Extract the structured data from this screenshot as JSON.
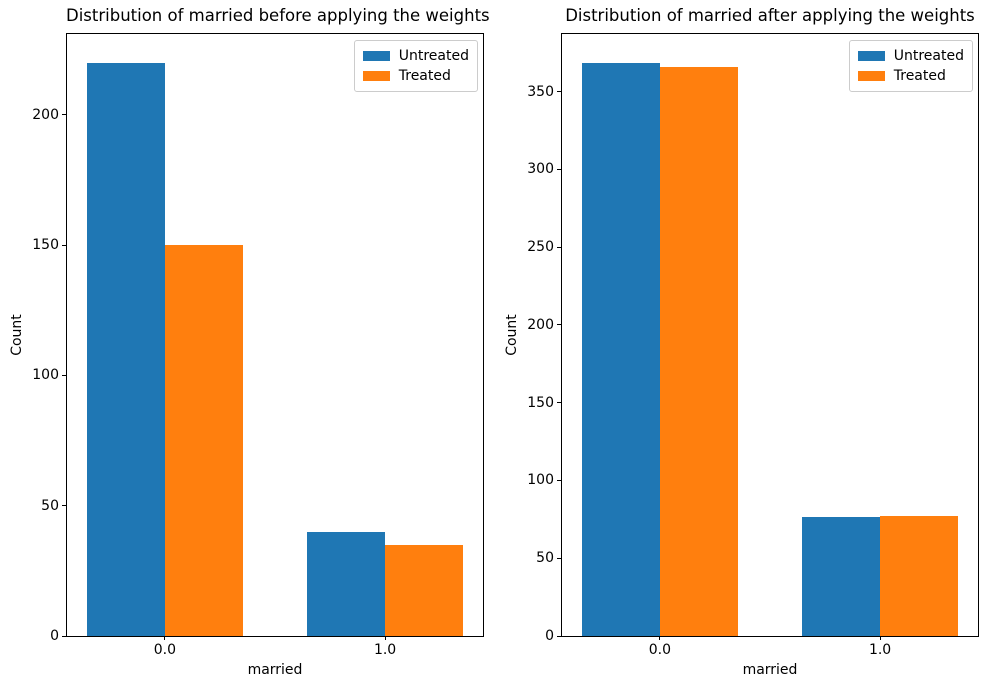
{
  "figure": {
    "background": "#ffffff",
    "axis_color": "#000000"
  },
  "colors": {
    "untreated": "#1f77b4",
    "treated": "#ff7f0e"
  },
  "chart_data": [
    {
      "type": "bar",
      "title": "Distribution of married before applying the weights",
      "xlabel": "married",
      "ylabel": "Count",
      "categories": [
        "0.0",
        "1.0"
      ],
      "series": [
        {
          "name": "Untreated",
          "color": "#1f77b4",
          "values": [
            220,
            40
          ]
        },
        {
          "name": "Treated",
          "color": "#ff7f0e",
          "values": [
            150,
            35
          ]
        }
      ],
      "yticks": [
        0,
        50,
        100,
        150,
        200
      ],
      "ylim": [
        0,
        231
      ],
      "xlim": [
        -0.445,
        1.445
      ],
      "bar_width": 0.355,
      "grid": false,
      "legend_location": "upper right"
    },
    {
      "type": "bar",
      "title": "Distribution of married after applying the weights",
      "xlabel": "married",
      "ylabel": "Count",
      "categories": [
        "0.0",
        "1.0"
      ],
      "series": [
        {
          "name": "Untreated",
          "color": "#1f77b4",
          "values": [
            368.5,
            76.5
          ]
        },
        {
          "name": "Treated",
          "color": "#ff7f0e",
          "values": [
            366,
            77
          ]
        }
      ],
      "yticks": [
        0,
        50,
        100,
        150,
        200,
        250,
        300,
        350
      ],
      "ylim": [
        0,
        387
      ],
      "xlim": [
        -0.445,
        1.445
      ],
      "bar_width": 0.355,
      "grid": false,
      "legend_location": "upper right"
    }
  ]
}
